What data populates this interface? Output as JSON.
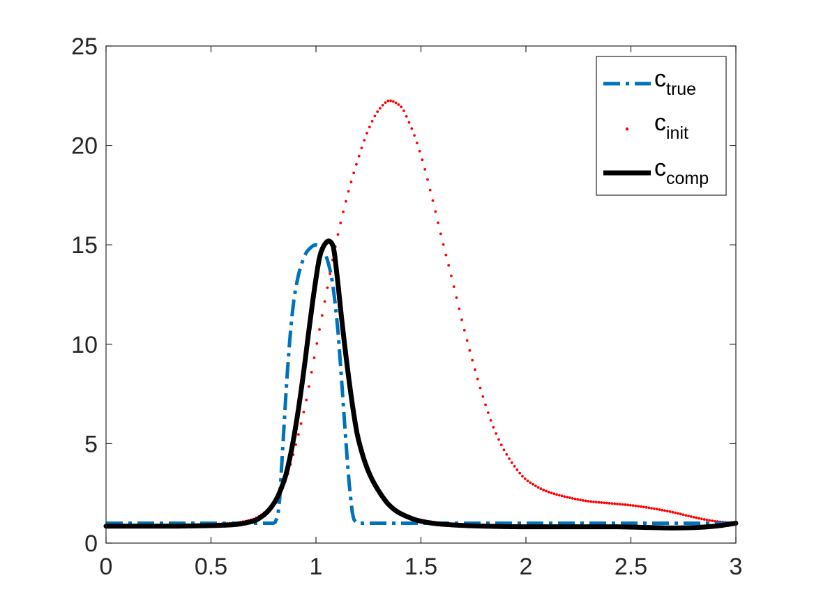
{
  "chart_data": {
    "type": "line",
    "xlim": [
      0,
      3
    ],
    "ylim": [
      0,
      25
    ],
    "xticks": [
      "0",
      "0.5",
      "1",
      "1.5",
      "2",
      "2.5",
      "3"
    ],
    "yticks": [
      "0",
      "5",
      "10",
      "15",
      "20",
      "25"
    ],
    "grid": false,
    "legend_position": "top-right",
    "series": [
      {
        "name": "c",
        "name_sub": "true",
        "style": "dash-dot",
        "color": "#0072BD",
        "x": [
          0,
          0.5,
          0.8,
          0.82,
          0.84,
          0.86,
          0.88,
          0.9,
          0.93,
          0.96,
          1.0,
          1.04,
          1.07,
          1.1,
          1.12,
          1.14,
          1.16,
          1.18,
          1.2,
          1.5,
          2.0,
          2.5,
          3.0
        ],
        "y": [
          1,
          1,
          1,
          1.5,
          4.5,
          8.0,
          10.8,
          12.6,
          14.0,
          14.7,
          15.0,
          14.6,
          13.6,
          11.2,
          8.5,
          5.5,
          2.8,
          1.2,
          1,
          1,
          1,
          1,
          1
        ]
      },
      {
        "name": "c",
        "name_sub": "init",
        "style": "dotted",
        "color": "#FF0000",
        "x": [
          0,
          0.3,
          0.5,
          0.6,
          0.7,
          0.8,
          0.85,
          0.9,
          0.95,
          1.0,
          1.05,
          1.1,
          1.15,
          1.2,
          1.25,
          1.3,
          1.35,
          1.4,
          1.45,
          1.5,
          1.55,
          1.6,
          1.65,
          1.7,
          1.75,
          1.8,
          1.85,
          1.9,
          1.95,
          2.0,
          2.1,
          2.2,
          2.3,
          2.4,
          2.5,
          2.6,
          2.7,
          2.8,
          2.9,
          3.0
        ],
        "y": [
          0.9,
          0.9,
          0.95,
          1.0,
          1.2,
          2.0,
          3.0,
          4.8,
          7.0,
          9.8,
          12.6,
          15.3,
          17.5,
          19.3,
          20.8,
          21.8,
          22.25,
          22.0,
          21.0,
          19.5,
          17.5,
          15.3,
          13.2,
          11.0,
          9.0,
          7.2,
          5.7,
          4.6,
          3.8,
          3.2,
          2.6,
          2.3,
          2.1,
          2.0,
          1.9,
          1.75,
          1.55,
          1.3,
          1.1,
          1.0
        ]
      },
      {
        "name": "c",
        "name_sub": "comp",
        "style": "solid",
        "color": "#000000",
        "x": [
          0,
          0.3,
          0.5,
          0.6,
          0.7,
          0.75,
          0.8,
          0.85,
          0.88,
          0.91,
          0.94,
          0.97,
          1.0,
          1.02,
          1.04,
          1.06,
          1.08,
          1.1,
          1.12,
          1.15,
          1.18,
          1.2,
          1.25,
          1.3,
          1.35,
          1.4,
          1.5,
          1.6,
          1.8,
          2.0,
          2.2,
          2.4,
          2.6,
          2.7,
          2.8,
          2.9,
          3.0
        ],
        "y": [
          0.85,
          0.85,
          0.88,
          0.92,
          1.1,
          1.4,
          2.0,
          3.2,
          4.5,
          6.3,
          8.5,
          11.0,
          13.3,
          14.5,
          15.0,
          15.2,
          15.0,
          13.5,
          11.5,
          8.8,
          6.5,
          5.3,
          3.6,
          2.6,
          1.9,
          1.5,
          1.1,
          0.95,
          0.85,
          0.82,
          0.82,
          0.82,
          0.78,
          0.76,
          0.78,
          0.85,
          1.0
        ]
      }
    ]
  }
}
